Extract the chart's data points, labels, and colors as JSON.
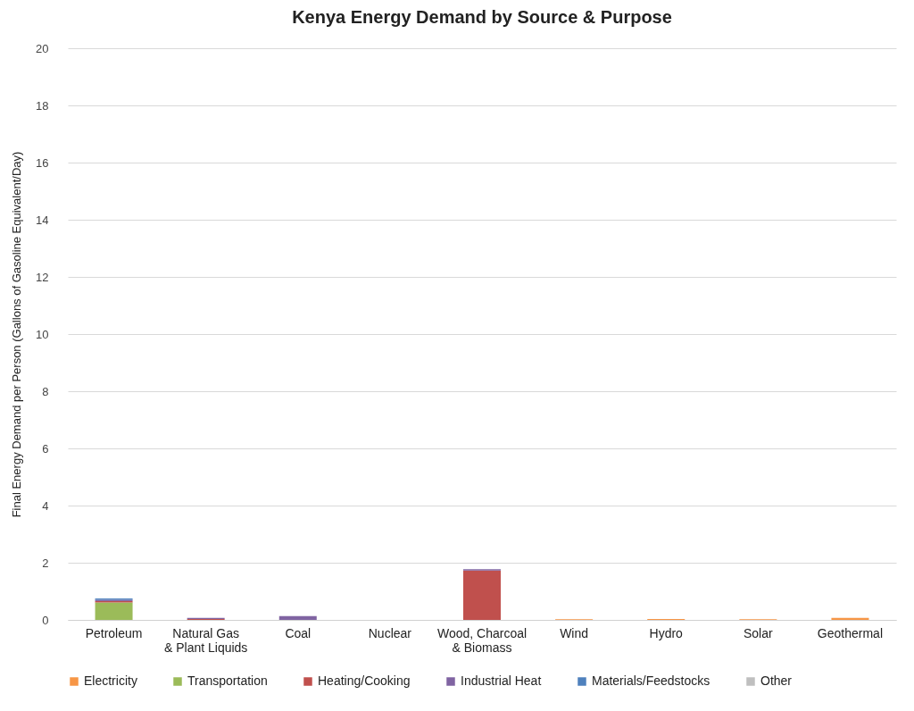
{
  "chart_data": {
    "type": "bar",
    "title": "Kenya Energy Demand by Source & Purpose",
    "ylabel": "Final Energy Demand per Person (Gallons of Gasoline Equivalent/Day)",
    "categories": [
      "Petroleum",
      "Natural Gas\n& Plant Liquids",
      "Coal",
      "Nuclear",
      "Wood, Charcoal\n& Biomass",
      "Wind",
      "Hydro",
      "Solar",
      "Geothermal"
    ],
    "stacked": true,
    "ylim": [
      0,
      20
    ],
    "yticks": [
      0,
      2,
      4,
      6,
      8,
      10,
      12,
      14,
      16,
      18,
      20
    ],
    "grid": "y",
    "legend": "bottom",
    "series": [
      {
        "name": "Electricity",
        "color": "#f79646",
        "values": [
          null,
          0,
          0,
          0,
          0,
          0.02,
          0.03,
          0.02,
          0.07
        ]
      },
      {
        "name": "Transportation",
        "color": "#9bbb59",
        "values": [
          0.61,
          0,
          0,
          0,
          0,
          0,
          0,
          0,
          0
        ]
      },
      {
        "name": "Heating/Cooking",
        "color": "#c0504d",
        "values": [
          0.05,
          0.03,
          0,
          0,
          1.73,
          0,
          0,
          0,
          0
        ]
      },
      {
        "name": "Industrial Heat",
        "color": "#8064a2",
        "values": [
          0.04,
          0.04,
          0.13,
          0,
          0.04,
          0,
          0,
          0,
          0
        ]
      },
      {
        "name": "Materials/Feedstocks",
        "color": "#4f81bd",
        "values": [
          0.05,
          0,
          0,
          0,
          0,
          0,
          0,
          0,
          0
        ]
      },
      {
        "name": "Other",
        "color": "#bfbfbf",
        "values": [
          0,
          0,
          0,
          0,
          0,
          0,
          0,
          0,
          0
        ]
      }
    ]
  }
}
